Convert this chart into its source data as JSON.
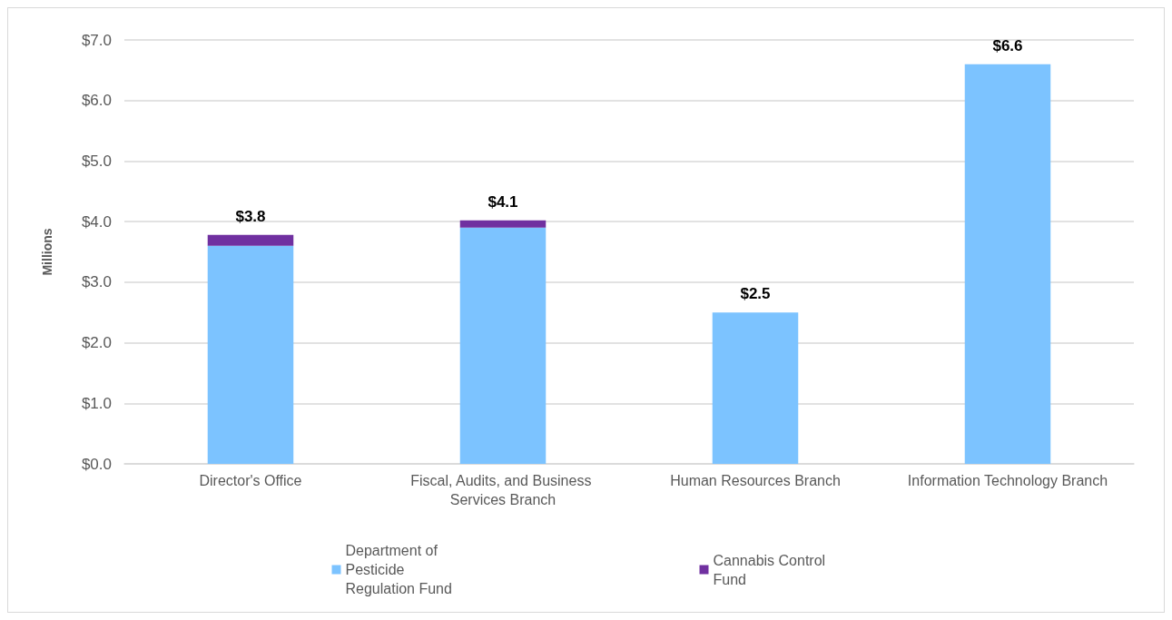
{
  "chart_data": {
    "type": "bar",
    "stacked": true,
    "ylabel": "Millions",
    "categories": [
      "Director's Office",
      "Fiscal, Audits, and Business Services Branch",
      "Human Resources Branch",
      "Information Technology Branch"
    ],
    "series": [
      {
        "name": "Department of Pesticide Regulation Fund",
        "color": "#7cc3ff",
        "values": [
          3.6,
          3.9,
          2.5,
          6.6
        ]
      },
      {
        "name": "Cannabis Control Fund",
        "color": "#7030a0",
        "values": [
          0.18,
          0.12,
          0,
          0
        ]
      }
    ],
    "totals": [
      "$3.8",
      "$4.1",
      "$2.5",
      "$6.6"
    ],
    "ylim": [
      0,
      7
    ],
    "yticks": [
      {
        "value": 0,
        "label": "$0.0"
      },
      {
        "value": 1,
        "label": "$1.0"
      },
      {
        "value": 2,
        "label": "$2.0"
      },
      {
        "value": 3,
        "label": "$3.0"
      },
      {
        "value": 4,
        "label": "$4.0"
      },
      {
        "value": 5,
        "label": "$5.0"
      },
      {
        "value": 6,
        "label": "$6.0"
      },
      {
        "value": 7,
        "label": "$7.0"
      }
    ],
    "grid": "y",
    "legend": "bottom"
  }
}
